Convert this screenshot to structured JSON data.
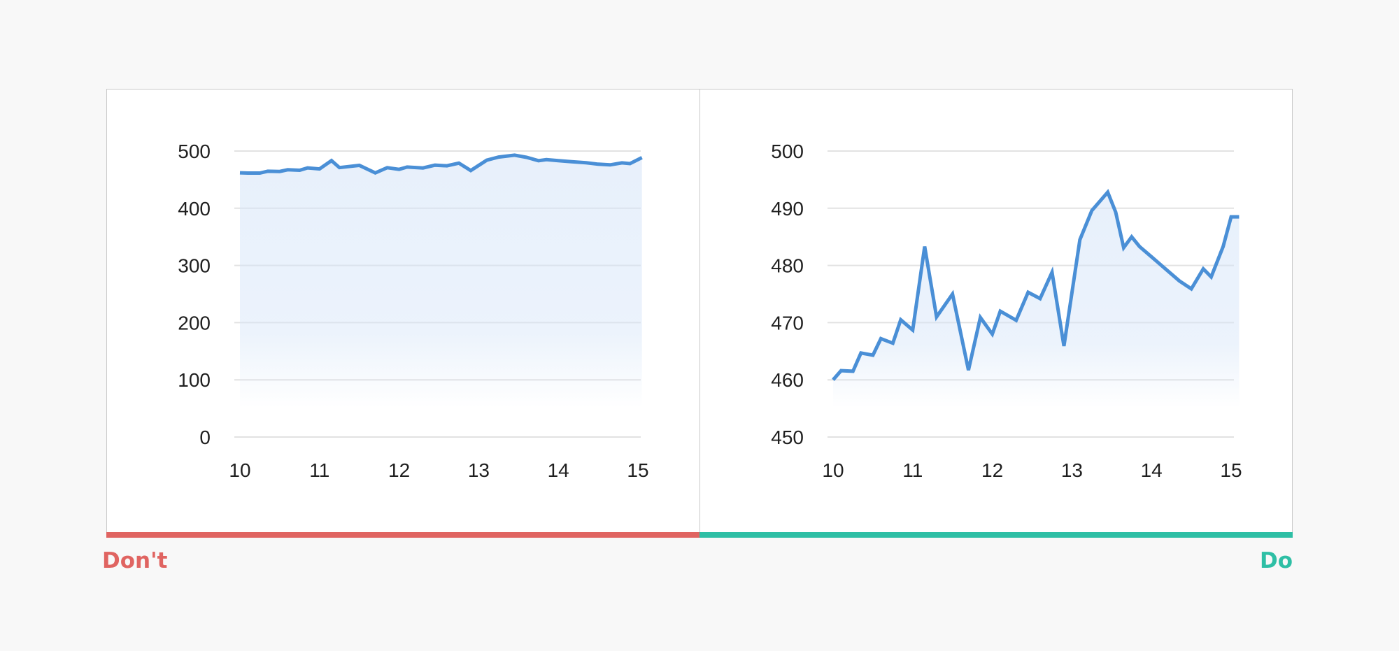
{
  "comparison": {
    "dont_label": "Don't",
    "do_label": "Do",
    "dont_color": "#e06461",
    "do_color": "#2ebfa5"
  },
  "chart_style": {
    "line_color": "#4a8fd6",
    "fill_color": "#d4e4f8",
    "grid_color": "#e2e2e2",
    "text_color": "#1f1f1f"
  },
  "chart_data": [
    {
      "type": "area",
      "title": "",
      "xlabel": "",
      "ylabel": "",
      "grid": true,
      "legend": "none",
      "xlim": [
        10,
        15
      ],
      "ylim": [
        0,
        500
      ],
      "x_ticks": [
        10,
        11,
        12,
        13,
        14,
        15
      ],
      "y_ticks": [
        0,
        100,
        200,
        300,
        400,
        500
      ],
      "x": [
        10.0,
        10.1,
        10.25,
        10.35,
        10.5,
        10.6,
        10.75,
        10.85,
        11.0,
        11.15,
        11.25,
        11.5,
        11.7,
        11.85,
        12.0,
        12.1,
        12.3,
        12.45,
        12.6,
        12.75,
        12.9,
        13.1,
        13.25,
        13.45,
        13.6,
        13.75,
        13.85,
        14.0,
        14.15,
        14.35,
        14.5,
        14.65,
        14.8,
        14.9,
        15.05
      ],
      "series": [
        {
          "values": [
            462,
            461.5,
            461.5,
            464.7,
            464.3,
            467.2,
            466.4,
            470.5,
            468.7,
            483.3,
            471.0,
            475.0,
            461.7,
            470.9,
            468.0,
            472.0,
            470.4,
            475.3,
            474.2,
            478.8,
            465.9,
            484.0,
            489.5,
            492.8,
            489.0,
            483.1,
            485.0,
            483.3,
            481.5,
            479.5,
            477.0,
            475.8,
            479.3,
            478.0,
            488.5
          ]
        }
      ]
    },
    {
      "type": "area",
      "title": "",
      "xlabel": "",
      "ylabel": "",
      "grid": true,
      "legend": "none",
      "xlim": [
        10,
        15
      ],
      "ylim": [
        450,
        500
      ],
      "x_ticks": [
        10,
        11,
        12,
        13,
        14,
        15
      ],
      "y_ticks": [
        450,
        460,
        470,
        480,
        490,
        500
      ],
      "x": [
        10.0,
        10.1,
        10.25,
        10.35,
        10.5,
        10.6,
        10.75,
        10.85,
        11.0,
        11.15,
        11.3,
        11.5,
        11.7,
        11.85,
        12.0,
        12.1,
        12.3,
        12.45,
        12.6,
        12.75,
        12.9,
        13.1,
        13.25,
        13.45,
        13.55,
        13.65,
        13.75,
        13.85,
        14.0,
        14.15,
        14.35,
        14.5,
        14.65,
        14.75,
        14.9,
        15.0,
        15.1
      ],
      "series": [
        {
          "values": [
            460.0,
            461.6,
            461.5,
            464.7,
            464.3,
            467.2,
            466.4,
            470.5,
            468.7,
            483.3,
            471.0,
            475.0,
            461.7,
            470.9,
            468.0,
            472.0,
            470.4,
            475.3,
            474.2,
            478.8,
            465.9,
            484.5,
            489.6,
            492.8,
            489.3,
            483.1,
            485.0,
            483.3,
            481.5,
            479.7,
            477.3,
            475.9,
            479.4,
            478.0,
            483.3,
            488.5,
            488.5
          ]
        }
      ]
    }
  ]
}
